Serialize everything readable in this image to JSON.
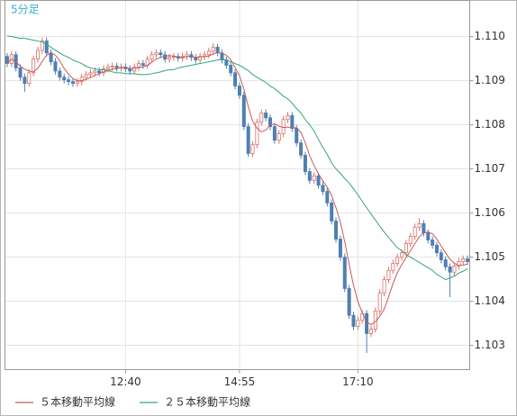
{
  "chart_data": {
    "type": "candlestick",
    "title": "5分足",
    "categories": [
      null,
      null,
      null,
      null,
      null,
      null,
      null,
      null,
      null,
      null,
      null,
      null,
      null,
      null,
      null,
      null,
      null,
      null,
      null,
      null,
      null,
      null,
      null,
      null,
      null,
      null,
      null,
      "12:40",
      null,
      null,
      null,
      null,
      null,
      null,
      null,
      null,
      null,
      null,
      null,
      null,
      null,
      null,
      null,
      null,
      null,
      null,
      null,
      null,
      null,
      null,
      null,
      null,
      null,
      "14:55",
      null,
      null,
      null,
      null,
      null,
      null,
      null,
      null,
      null,
      null,
      null,
      null,
      null,
      null,
      null,
      null,
      null,
      null,
      null,
      null,
      null,
      null,
      null,
      null,
      null,
      null,
      "17:10",
      null,
      null,
      null,
      null,
      null,
      null,
      null,
      null,
      null,
      null,
      null,
      null,
      null,
      null,
      null,
      null,
      null,
      null,
      null,
      null,
      null,
      null,
      null,
      null,
      null
    ],
    "open": [
      1.10955,
      1.10939,
      1.10959,
      1.10929,
      1.10908,
      1.10894,
      1.10918,
      1.10949,
      1.10969,
      1.1099,
      1.10963,
      1.10943,
      1.10922,
      1.10908,
      1.10902,
      1.10898,
      1.10894,
      1.10898,
      1.10908,
      1.10914,
      1.10918,
      1.10922,
      1.10918,
      1.10927,
      1.10931,
      1.10933,
      1.10929,
      1.10931,
      1.10927,
      1.10922,
      1.10931,
      1.10939,
      1.10935,
      1.10949,
      1.10959,
      1.10963,
      1.10959,
      1.10949,
      1.10953,
      1.10955,
      1.10951,
      1.10955,
      1.10959,
      1.10953,
      1.10947,
      1.10955,
      1.10959,
      1.10967,
      1.10976,
      1.10963,
      1.10947,
      1.10935,
      1.10918,
      1.10888,
      1.10867,
      1.10796,
      1.10735,
      1.10755,
      1.10806,
      1.10827,
      1.10816,
      1.10796,
      1.10765,
      1.1078,
      1.10812,
      1.10821,
      1.10792,
      1.10759,
      1.10731,
      1.10694,
      1.10674,
      1.10684,
      1.10663,
      1.10649,
      1.10623,
      1.10582,
      1.10541,
      1.105,
      1.10429,
      1.10368,
      1.10343,
      1.10357,
      1.10372,
      1.10327,
      1.10337,
      1.10378,
      1.10419,
      1.10449,
      1.1047,
      1.10486,
      1.105,
      1.1051,
      1.10531,
      1.10547,
      1.10568,
      1.10576,
      1.10555,
      1.10539,
      1.10527,
      1.1051,
      1.10494,
      1.10478,
      1.10466,
      1.1048,
      1.1049,
      1.10496
    ],
    "high": [
      1.10963,
      1.10967,
      1.10967,
      1.10937,
      1.10916,
      1.10926,
      1.10957,
      1.10977,
      1.10998,
      1.10998,
      1.10971,
      1.10951,
      1.1093,
      1.10916,
      1.1091,
      1.10906,
      1.10906,
      1.10916,
      1.10922,
      1.10926,
      1.1093,
      1.1093,
      1.10935,
      1.10939,
      1.10941,
      1.10941,
      1.10939,
      1.10939,
      1.10935,
      1.10939,
      1.10947,
      1.10947,
      1.10957,
      1.10967,
      1.10971,
      1.10971,
      1.10967,
      1.10961,
      1.10963,
      1.10963,
      1.10963,
      1.10967,
      1.10967,
      1.10961,
      1.10963,
      1.10967,
      1.10975,
      1.10985,
      1.10984,
      1.10971,
      1.10955,
      1.10943,
      1.10926,
      1.10896,
      1.10875,
      1.10804,
      1.10763,
      1.10814,
      1.10835,
      1.10835,
      1.10824,
      1.10804,
      1.10788,
      1.1082,
      1.10829,
      1.10829,
      1.108,
      1.10767,
      1.10739,
      1.10702,
      1.10692,
      1.10692,
      1.10671,
      1.10657,
      1.10631,
      1.1059,
      1.10549,
      1.10508,
      1.10437,
      1.10376,
      1.10365,
      1.1038,
      1.1038,
      1.10345,
      1.10386,
      1.10427,
      1.10457,
      1.10478,
      1.10494,
      1.10508,
      1.10518,
      1.10539,
      1.10555,
      1.10576,
      1.10588,
      1.10584,
      1.10563,
      1.10547,
      1.10535,
      1.10518,
      1.10502,
      1.10486,
      1.10488,
      1.10498,
      1.10504,
      1.10504
    ],
    "low": [
      1.10931,
      1.10931,
      1.10921,
      1.109,
      1.10875,
      1.10886,
      1.1091,
      1.10941,
      1.10961,
      1.10955,
      1.10935,
      1.10914,
      1.109,
      1.10894,
      1.1089,
      1.10886,
      1.10886,
      1.1089,
      1.109,
      1.10906,
      1.1091,
      1.1091,
      1.1091,
      1.10919,
      1.10923,
      1.10921,
      1.10921,
      1.10919,
      1.10914,
      1.10914,
      1.10923,
      1.10927,
      1.10927,
      1.10941,
      1.10951,
      1.10951,
      1.10941,
      1.10941,
      1.10945,
      1.10943,
      1.10943,
      1.10947,
      1.10945,
      1.10939,
      1.10939,
      1.10947,
      1.10951,
      1.10959,
      1.10955,
      1.10939,
      1.10927,
      1.1091,
      1.1088,
      1.10859,
      1.10788,
      1.10727,
      1.10727,
      1.10747,
      1.10798,
      1.10808,
      1.10788,
      1.10757,
      1.10757,
      1.10772,
      1.10804,
      1.10784,
      1.10751,
      1.10723,
      1.10686,
      1.10666,
      1.10666,
      1.10655,
      1.10641,
      1.10615,
      1.10574,
      1.10533,
      1.10492,
      1.10421,
      1.1036,
      1.10335,
      1.10335,
      1.10349,
      1.10283,
      1.10319,
      1.10329,
      1.1037,
      1.10411,
      1.10441,
      1.10462,
      1.10478,
      1.10492,
      1.10502,
      1.10523,
      1.10539,
      1.1056,
      1.10547,
      1.10531,
      1.10519,
      1.10502,
      1.10486,
      1.1047,
      1.10409,
      1.10458,
      1.10472,
      1.10482,
      1.10482
    ],
    "close": [
      1.10939,
      1.10959,
      1.10929,
      1.10908,
      1.10894,
      1.10918,
      1.10949,
      1.10969,
      1.1099,
      1.10963,
      1.10943,
      1.10922,
      1.10908,
      1.10902,
      1.10898,
      1.10894,
      1.10898,
      1.10908,
      1.10914,
      1.10918,
      1.10922,
      1.10918,
      1.10927,
      1.10931,
      1.10933,
      1.10929,
      1.10931,
      1.10927,
      1.10922,
      1.10931,
      1.10939,
      1.10935,
      1.10949,
      1.10959,
      1.10963,
      1.10959,
      1.10949,
      1.10953,
      1.10955,
      1.10951,
      1.10955,
      1.10959,
      1.10953,
      1.10947,
      1.10955,
      1.10959,
      1.10967,
      1.10976,
      1.10963,
      1.10947,
      1.10935,
      1.10918,
      1.10888,
      1.10867,
      1.10796,
      1.10735,
      1.10755,
      1.10806,
      1.10827,
      1.10816,
      1.10796,
      1.10765,
      1.1078,
      1.10812,
      1.10821,
      1.10792,
      1.10759,
      1.10731,
      1.10694,
      1.10674,
      1.10684,
      1.10663,
      1.10649,
      1.10623,
      1.10582,
      1.10541,
      1.105,
      1.10429,
      1.10368,
      1.10343,
      1.10357,
      1.10372,
      1.10327,
      1.10337,
      1.10378,
      1.10419,
      1.10449,
      1.1047,
      1.10486,
      1.105,
      1.1051,
      1.10531,
      1.10547,
      1.10568,
      1.10576,
      1.10555,
      1.10539,
      1.10527,
      1.1051,
      1.10494,
      1.10478,
      1.10466,
      1.1048,
      1.1049,
      1.10496,
      1.1049
    ],
    "up_color": "#d9736a",
    "down_color": "#4f7fb3",
    "series": [
      {
        "name": "５本移動平均線",
        "color": "#c85a5a",
        "values": [
          1.10939,
          1.10949,
          1.10943,
          1.10933,
          1.10926,
          1.10922,
          1.1092,
          1.10928,
          1.10944,
          1.10958,
          1.10963,
          1.10958,
          1.10945,
          1.10928,
          1.10915,
          1.10905,
          1.109,
          1.109,
          1.10903,
          1.10907,
          1.10912,
          1.10916,
          1.1092,
          1.10923,
          1.10926,
          1.10927,
          1.1093,
          1.1093,
          1.10928,
          1.10928,
          1.1093,
          1.10931,
          1.10935,
          1.10942,
          1.10949,
          1.10953,
          1.10956,
          1.10957,
          1.10956,
          1.10954,
          1.10953,
          1.10955,
          1.10955,
          1.10953,
          1.10954,
          1.10955,
          1.10956,
          1.10961,
          1.10964,
          1.10962,
          1.10958,
          1.10948,
          1.1093,
          1.10911,
          1.10881,
          1.10841,
          1.10808,
          1.10792,
          1.10784,
          1.10788,
          1.108,
          1.10802,
          1.10797,
          1.10794,
          1.10795,
          1.10794,
          1.10793,
          1.10783,
          1.10759,
          1.1073,
          1.10708,
          1.10689,
          1.10673,
          1.10659,
          1.1064,
          1.10612,
          1.10579,
          1.10535,
          1.10484,
          1.10436,
          1.10399,
          1.10374,
          1.10353,
          1.10347,
          1.10354,
          1.10366,
          1.10382,
          1.1041,
          1.1044,
          1.10465,
          1.10483,
          1.10499,
          1.10515,
          1.10531,
          1.10546,
          1.10555,
          1.10557,
          1.10553,
          1.10541,
          1.10525,
          1.1051,
          1.10495,
          1.10486,
          1.10481,
          1.10482,
          1.10484
        ]
      },
      {
        "name": "２５本移動平均線",
        "color": "#2fa77a",
        "values": [
          1.11002,
          1.11,
          1.10998,
          1.10996,
          1.10996,
          1.10994,
          1.10992,
          1.1099,
          1.10988,
          1.10982,
          1.10976,
          1.10969,
          1.10963,
          1.10957,
          1.10953,
          1.10947,
          1.10943,
          1.10939,
          1.10933,
          1.10929,
          1.10927,
          1.10925,
          1.10925,
          1.10923,
          1.1092,
          1.10918,
          1.10918,
          1.10916,
          1.10916,
          1.10916,
          1.10914,
          1.10914,
          1.10914,
          1.10916,
          1.10918,
          1.1092,
          1.10923,
          1.10925,
          1.10925,
          1.10929,
          1.10931,
          1.10933,
          1.10935,
          1.10937,
          1.10939,
          1.10941,
          1.10943,
          1.10945,
          1.10947,
          1.10949,
          1.10947,
          1.10943,
          1.10939,
          1.10935,
          1.10929,
          1.10923,
          1.10914,
          1.10908,
          1.10902,
          1.10896,
          1.10888,
          1.10882,
          1.10874,
          1.10865,
          1.10859,
          1.10849,
          1.10837,
          1.10827,
          1.10812,
          1.108,
          1.10786,
          1.10767,
          1.10749,
          1.10733,
          1.10714,
          1.107,
          1.1069,
          1.10678,
          1.10668,
          1.10655,
          1.10641,
          1.10627,
          1.10612,
          1.10598,
          1.10584,
          1.1057,
          1.10557,
          1.10545,
          1.10533,
          1.10521,
          1.10515,
          1.10506,
          1.105,
          1.10494,
          1.10488,
          1.10482,
          1.10476,
          1.1047,
          1.10461,
          1.10455,
          1.10449,
          1.10453,
          1.10457,
          1.10464,
          1.10468,
          1.10474
        ]
      }
    ],
    "ylim": [
      1.10245,
      1.11082
    ],
    "yticks": [
      {
        "value": 1.11,
        "label": "1.110"
      },
      1.109,
      1.108,
      1.107,
      1.106,
      1.105,
      1.104,
      1.103
    ],
    "grid": true
  }
}
